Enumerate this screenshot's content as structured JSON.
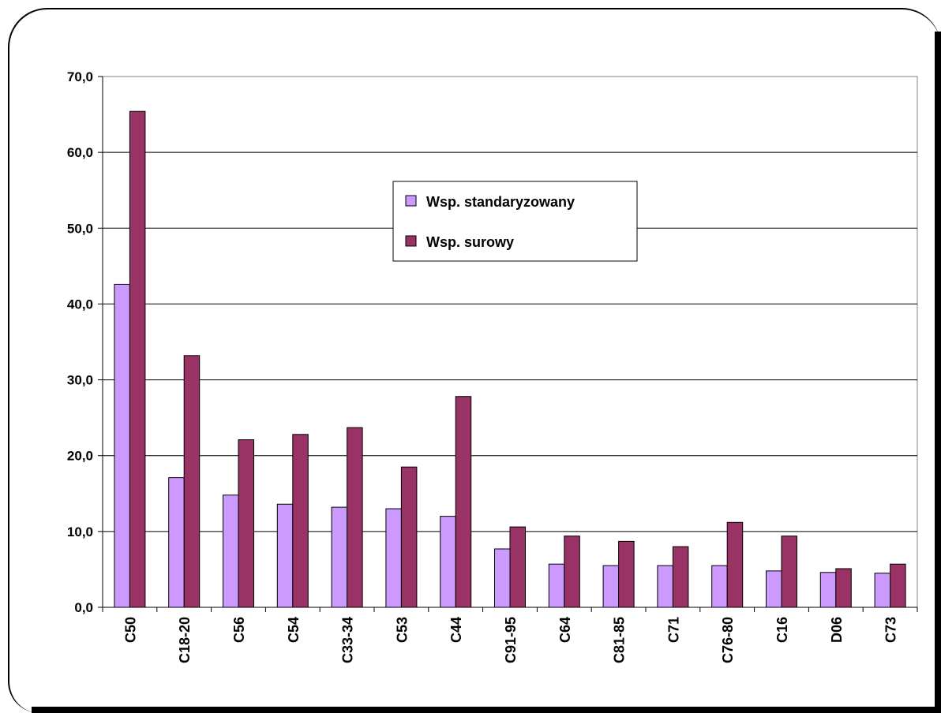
{
  "chart_data": {
    "type": "bar",
    "title": "",
    "xlabel": "",
    "ylabel": "",
    "ylim": [
      0,
      70
    ],
    "yticks": [
      "0,0",
      "10,0",
      "20,0",
      "30,0",
      "40,0",
      "50,0",
      "60,0",
      "70,0"
    ],
    "grid": true,
    "legend_position": "top-center",
    "categories": [
      "C50",
      "C18-20",
      "C56",
      "C54",
      "C33-34",
      "C53",
      "C44",
      "C91-95",
      "C64",
      "C81-85",
      "C71",
      "C76-80",
      "C16",
      "D06",
      "C73"
    ],
    "series": [
      {
        "name": "Wsp. standaryzowany",
        "color": "#cc99ff",
        "values": [
          42.6,
          17.1,
          14.8,
          13.6,
          13.2,
          13.0,
          12.0,
          7.7,
          5.7,
          5.5,
          5.5,
          5.5,
          4.8,
          4.6,
          4.5
        ]
      },
      {
        "name": "Wsp. surowy",
        "color": "#993366",
        "values": [
          65.4,
          33.2,
          22.1,
          22.8,
          23.7,
          18.5,
          27.8,
          10.6,
          9.4,
          8.7,
          8.0,
          11.2,
          9.4,
          5.1,
          5.7
        ]
      }
    ]
  }
}
